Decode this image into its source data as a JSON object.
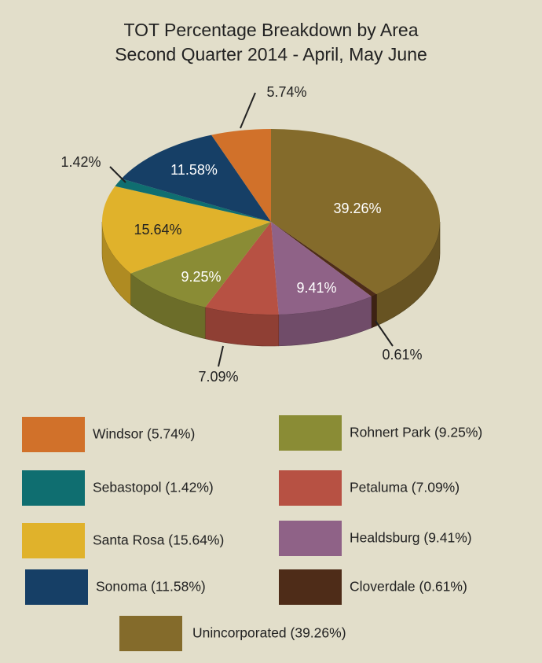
{
  "chart_data": {
    "type": "pie",
    "title": "TOT Percentage Breakdown by Area",
    "subtitle": "Second Quarter 2014 - April, May June",
    "categories": [
      "Unincorporated (39.26%)",
      "Cloverdale (0.61%)",
      "Healdsburg (9.41%)",
      "Petaluma (7.09%)",
      "Rohnert Park (9.25%)",
      "Santa Rosa (15.64%)",
      "Sebastopol (1.42%)",
      "Sonoma (11.58%)",
      "Windsor (5.74%)"
    ],
    "values": [
      39.26,
      0.61,
      9.41,
      7.09,
      9.25,
      15.64,
      1.42,
      11.58,
      5.74
    ],
    "value_labels": [
      "39.26%",
      "0.61%",
      "9.41%",
      "7.09%",
      "9.25%",
      "15.64%",
      "1.42%",
      "11.58%",
      "5.74%"
    ],
    "colors": [
      "#846b2b",
      "#4e2c18",
      "#8f6287",
      "#b75143",
      "#8a8c35",
      "#e0b22b",
      "#0f6e70",
      "#163f66",
      "#d1712a"
    ]
  }
}
